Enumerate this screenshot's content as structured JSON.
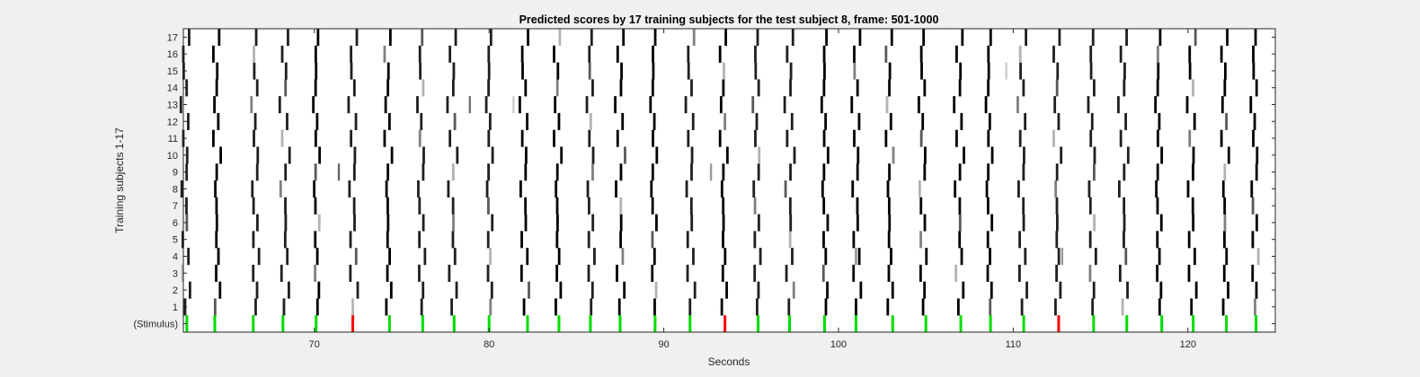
{
  "chart_data": {
    "type": "heatmap",
    "title": "Predicted scores by 17 training subjects for the test subject 8, frame: 501-1000",
    "xlabel": "Seconds",
    "ylabel": "Training subjects 1-17",
    "xlim": [
      62.5,
      125
    ],
    "xticks": [
      70,
      80,
      90,
      100,
      110,
      120
    ],
    "row_labels": [
      "(Stimulus)",
      "1",
      "2",
      "3",
      "4",
      "5",
      "6",
      "7",
      "8",
      "9",
      "10",
      "11",
      "12",
      "13",
      "14",
      "15",
      "16",
      "17"
    ],
    "grid": false,
    "colors": {
      "background": "#f0f0f0",
      "plot": "#ffffff",
      "prediction": "#000000",
      "stimulus_target": "#ff0000",
      "stimulus_nontarget": "#00dd00"
    },
    "stimulus": {
      "times": [
        62.7,
        64.3,
        66.5,
        68.2,
        70.1,
        72.2,
        74.3,
        76.2,
        78.0,
        80.0,
        82.2,
        84.0,
        85.8,
        87.5,
        89.5,
        91.5,
        93.5,
        95.4,
        97.2,
        99.2,
        101.0,
        103.1,
        105.0,
        107.0,
        108.7,
        110.6,
        112.6,
        114.6,
        116.5,
        118.5,
        120.3,
        122.2,
        123.9
      ],
      "target_times": [
        72.2,
        93.5,
        112.6
      ]
    },
    "predictions": {
      "event_times": [
        62.6,
        64.4,
        66.6,
        68.3,
        70.1,
        72.2,
        74.2,
        76.1,
        77.9,
        80.0,
        82.0,
        83.9,
        85.8,
        87.5,
        89.4,
        91.5,
        93.4,
        95.3,
        97.2,
        99.2,
        101.0,
        102.9,
        104.8,
        106.9,
        108.6,
        110.5,
        112.5,
        114.5,
        116.3,
        118.3,
        120.2,
        122.1,
        123.8
      ],
      "strong_events": [
        1,
        4,
        6,
        10,
        11,
        13,
        14,
        16,
        19,
        20,
        21,
        22,
        23,
        24,
        29,
        30,
        31,
        32
      ],
      "row_shift": [
        0,
        0.2,
        -0.1,
        0.15,
        -0.05,
        0.1,
        0,
        -0.15,
        0.05,
        0.2,
        -0.1,
        0.1,
        -0.2,
        0.05,
        0,
        -0.1,
        0.15
      ],
      "stray_marks": [
        {
          "t": 71.4,
          "row": 9,
          "score": 0.6
        },
        {
          "t": 78.9,
          "row": 13,
          "score": 0.55
        },
        {
          "t": 81.4,
          "row": 13,
          "score": 0.2
        },
        {
          "t": 92.7,
          "row": 9,
          "score": 0.4
        },
        {
          "t": 101.0,
          "row": 4,
          "score": 0.45
        },
        {
          "t": 112.8,
          "row": 4,
          "score": 0.4
        },
        {
          "t": 109.6,
          "row": 15,
          "score": 0.2
        }
      ]
    }
  }
}
